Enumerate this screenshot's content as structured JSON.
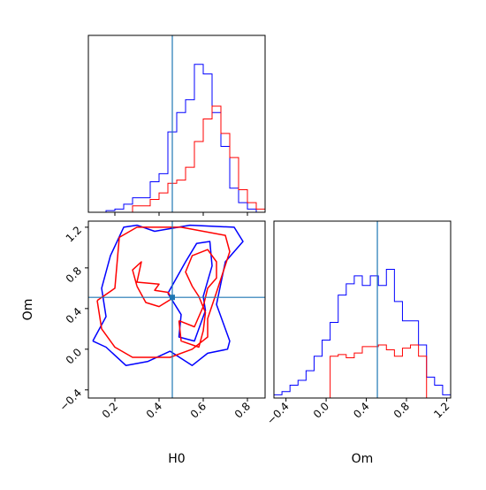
{
  "chart_data": {
    "type": "corner",
    "parameters": [
      "H0",
      "Om"
    ],
    "truths": {
      "H0": 0.46,
      "Om": 0.51
    },
    "series_colors": [
      "#0000ff",
      "#ff0000"
    ],
    "truth_color": "#1f77b4",
    "grid": false,
    "panels": [
      {
        "id": "hist-H0",
        "type": "step-histogram",
        "xlim": [
          0.08,
          0.88
        ],
        "ylim": [
          0,
          1.1
        ],
        "x_ticks": [
          0.2,
          0.4,
          0.6,
          0.8
        ],
        "x_tick_labels_shown": false,
        "y_ticks_shown": false,
        "bin_edges": [
          0.08,
          0.12,
          0.16,
          0.2,
          0.24,
          0.28,
          0.32,
          0.36,
          0.4,
          0.44,
          0.48,
          0.52,
          0.56,
          0.6,
          0.64,
          0.68,
          0.72,
          0.76,
          0.8,
          0.84,
          0.88
        ],
        "series": [
          {
            "values": [
              0.0,
              0.0,
              0.01,
              0.02,
              0.05,
              0.09,
              0.09,
              0.19,
              0.24,
              0.5,
              0.62,
              0.7,
              0.92,
              0.86,
              0.62,
              0.41,
              0.15,
              0.06,
              0.02,
              0.0
            ]
          },
          {
            "values": [
              0.0,
              0.0,
              0.0,
              0.0,
              0.0,
              0.04,
              0.04,
              0.08,
              0.12,
              0.18,
              0.2,
              0.28,
              0.44,
              0.58,
              0.66,
              0.49,
              0.34,
              0.14,
              0.06,
              0.02
            ]
          }
        ]
      },
      {
        "id": "contour-H0-Om",
        "type": "contour",
        "xlim": [
          0.08,
          0.88
        ],
        "ylim": [
          -0.48,
          1.26
        ],
        "x_ticks": [
          0.2,
          0.4,
          0.6,
          0.8
        ],
        "x_tick_labels": [
          "0.2",
          "0.4",
          "0.6",
          "0.8"
        ],
        "y_ticks": [
          -0.4,
          0.0,
          0.4,
          0.8,
          1.2
        ],
        "y_tick_labels": [
          "−0.4",
          "0.0",
          "0.4",
          "0.8",
          "1.2"
        ],
        "xlabel": "H0",
        "ylabel": "Om",
        "contours": [
          {
            "series": 0,
            "level": "outer",
            "points": [
              [
                0.1,
                0.08
              ],
              [
                0.16,
                0.02
              ],
              [
                0.25,
                -0.16
              ],
              [
                0.35,
                -0.12
              ],
              [
                0.45,
                -0.02
              ],
              [
                0.55,
                -0.16
              ],
              [
                0.62,
                -0.04
              ],
              [
                0.71,
                0.0
              ],
              [
                0.72,
                0.08
              ],
              [
                0.66,
                0.44
              ],
              [
                0.7,
                0.86
              ],
              [
                0.78,
                1.06
              ],
              [
                0.74,
                1.2
              ],
              [
                0.54,
                1.22
              ],
              [
                0.38,
                1.16
              ],
              [
                0.3,
                1.22
              ],
              [
                0.24,
                1.2
              ],
              [
                0.18,
                0.92
              ],
              [
                0.14,
                0.6
              ],
              [
                0.16,
                0.32
              ],
              [
                0.1,
                0.08
              ]
            ]
          },
          {
            "series": 0,
            "level": "inner",
            "points": [
              [
                0.44,
                0.55
              ],
              [
                0.52,
                0.86
              ],
              [
                0.57,
                1.04
              ],
              [
                0.63,
                1.06
              ],
              [
                0.64,
                0.82
              ],
              [
                0.6,
                0.52
              ],
              [
                0.61,
                0.38
              ],
              [
                0.56,
                0.08
              ],
              [
                0.49,
                0.12
              ],
              [
                0.5,
                0.34
              ],
              [
                0.44,
                0.55
              ]
            ]
          },
          {
            "series": 1,
            "level": "outer",
            "points": [
              [
                0.12,
                0.48
              ],
              [
                0.14,
                0.2
              ],
              [
                0.2,
                0.02
              ],
              [
                0.28,
                -0.08
              ],
              [
                0.45,
                -0.08
              ],
              [
                0.55,
                0.0
              ],
              [
                0.62,
                0.12
              ],
              [
                0.62,
                0.3
              ],
              [
                0.66,
                0.56
              ],
              [
                0.72,
                0.96
              ],
              [
                0.7,
                1.12
              ],
              [
                0.5,
                1.2
              ],
              [
                0.3,
                1.2
              ],
              [
                0.22,
                1.1
              ],
              [
                0.2,
                0.6
              ],
              [
                0.12,
                0.48
              ]
            ]
          },
          {
            "series": 1,
            "level": "inner",
            "points": [
              [
                0.3,
                0.62
              ],
              [
                0.28,
                0.78
              ],
              [
                0.32,
                0.86
              ],
              [
                0.3,
                0.66
              ],
              [
                0.4,
                0.64
              ],
              [
                0.38,
                0.58
              ],
              [
                0.44,
                0.56
              ],
              [
                0.46,
                0.5
              ],
              [
                0.4,
                0.42
              ],
              [
                0.34,
                0.46
              ],
              [
                0.3,
                0.62
              ]
            ]
          },
          {
            "series": 1,
            "level": "inner",
            "points": [
              [
                0.49,
                0.28
              ],
              [
                0.5,
                0.08
              ],
              [
                0.58,
                0.02
              ],
              [
                0.6,
                0.18
              ],
              [
                0.61,
                0.36
              ],
              [
                0.58,
                0.52
              ],
              [
                0.55,
                0.62
              ],
              [
                0.52,
                0.76
              ],
              [
                0.55,
                0.92
              ],
              [
                0.62,
                0.98
              ],
              [
                0.66,
                0.86
              ],
              [
                0.66,
                0.7
              ],
              [
                0.62,
                0.6
              ],
              [
                0.6,
                0.42
              ],
              [
                0.56,
                0.22
              ],
              [
                0.49,
                0.28
              ]
            ]
          }
        ]
      },
      {
        "id": "hist-Om",
        "type": "step-histogram",
        "xlim": [
          -0.52,
          1.24
        ],
        "ylim": [
          0,
          1.1
        ],
        "x_ticks": [
          -0.4,
          0.0,
          0.4,
          0.8,
          1.2
        ],
        "x_tick_labels": [
          "−0.4",
          "0.0",
          "0.4",
          "0.8",
          "1.2"
        ],
        "xlabel": "Om",
        "y_ticks_shown": false,
        "bin_edges": [
          -0.52,
          -0.44,
          -0.36,
          -0.28,
          -0.2,
          -0.12,
          -0.04,
          0.04,
          0.12,
          0.2,
          0.28,
          0.36,
          0.44,
          0.52,
          0.6,
          0.68,
          0.76,
          0.84,
          0.92,
          1.0,
          1.08,
          1.16,
          1.24
        ],
        "series": [
          {
            "values": [
              0.02,
              0.04,
              0.08,
              0.11,
              0.17,
              0.26,
              0.36,
              0.47,
              0.64,
              0.71,
              0.76,
              0.7,
              0.76,
              0.7,
              0.8,
              0.6,
              0.48,
              0.48,
              0.33,
              0.13,
              0.08,
              0.02
            ]
          },
          {
            "values": [
              0.0,
              0.0,
              0.0,
              0.0,
              0.0,
              0.0,
              0.0,
              0.26,
              0.27,
              0.25,
              0.28,
              0.32,
              0.32,
              0.33,
              0.3,
              0.26,
              0.31,
              0.33,
              0.26,
              0.0,
              0.0,
              0.0
            ]
          }
        ]
      }
    ]
  }
}
